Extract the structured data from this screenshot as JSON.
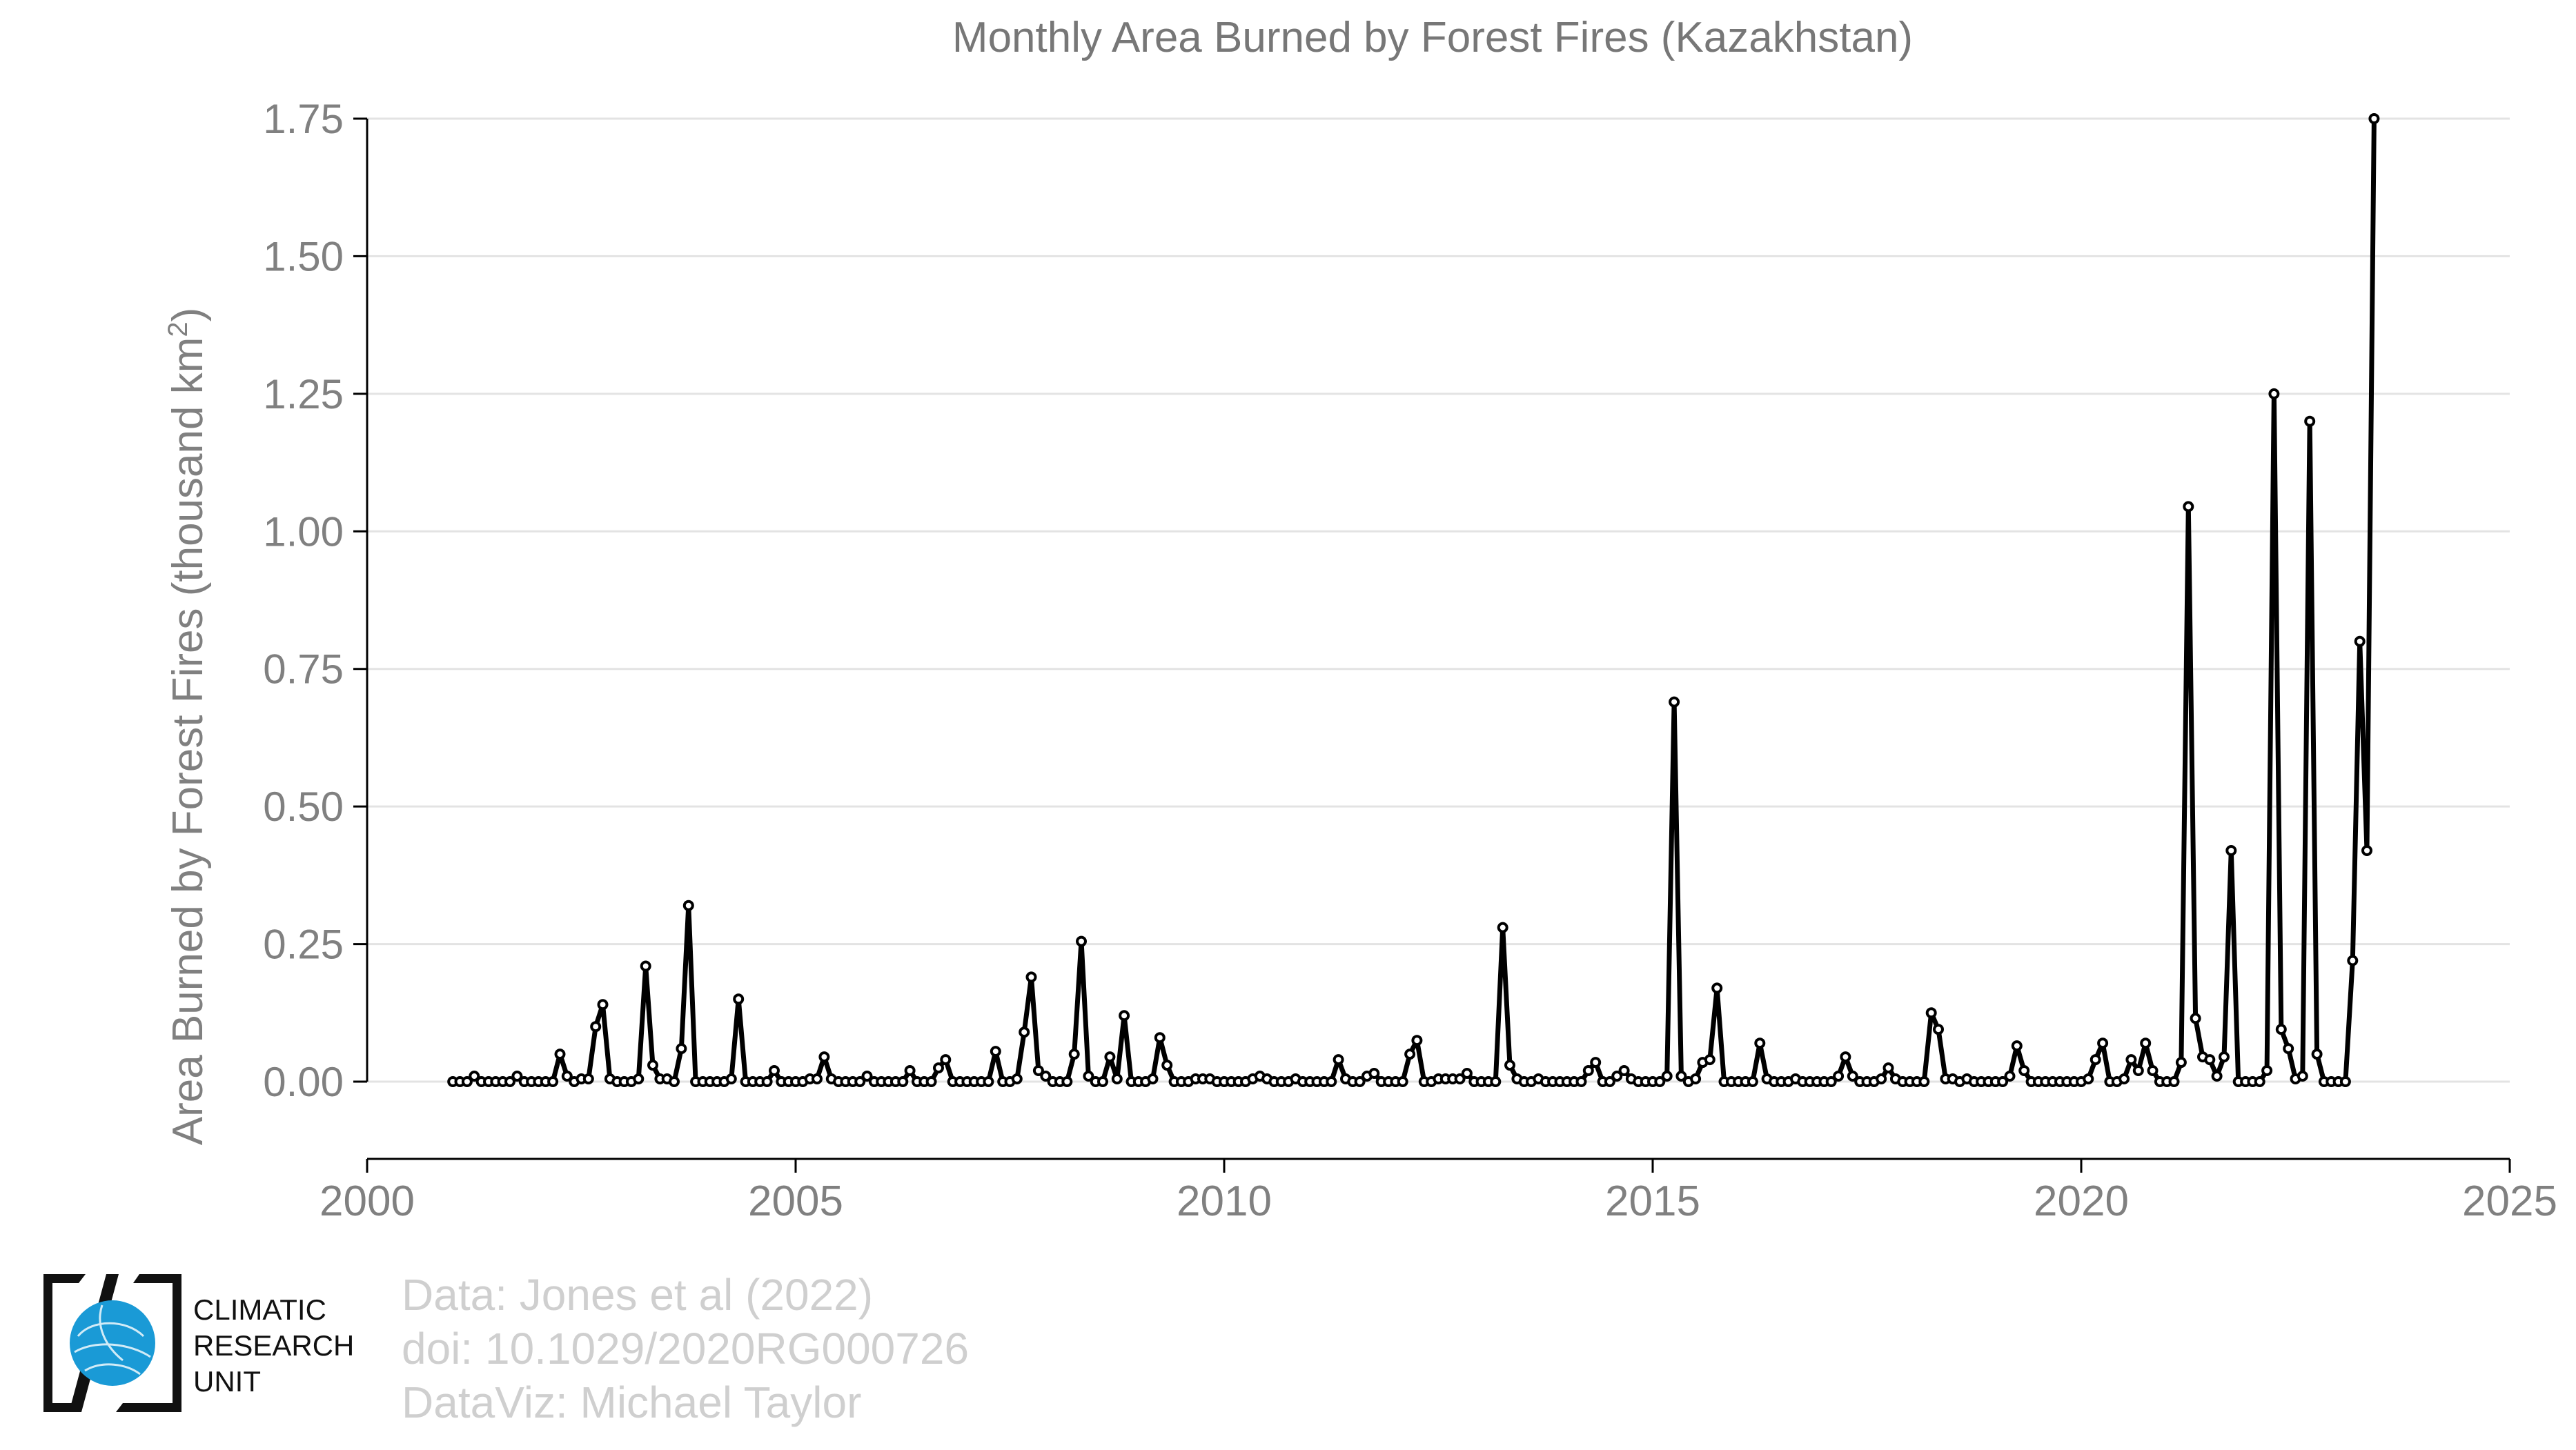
{
  "chart_data": {
    "type": "line",
    "title": "Monthly Area Burned by Forest Fires (Kazakhstan)",
    "ylabel": "Area Burned by Forest Fires (thousand km",
    "ylabel_superscript": "2",
    "ylabel_suffix": ")",
    "xlabel": "",
    "xlim": [
      2000,
      2025
    ],
    "ylim": [
      -0.14,
      1.75
    ],
    "x_ticks": [
      2000,
      2005,
      2010,
      2015,
      2020,
      2025
    ],
    "y_ticks": [
      0.0,
      0.25,
      0.5,
      0.75,
      1.0,
      1.25,
      1.5,
      1.75
    ],
    "y_tick_labels": [
      "0.00",
      "0.25",
      "0.50",
      "0.75",
      "1.00",
      "1.25",
      "1.50",
      "1.75"
    ],
    "grid": "horizontal",
    "series_color": "#000000",
    "start": "2001-01",
    "end": "2023-06",
    "values": [
      0,
      0,
      0,
      0.01,
      0,
      0,
      0,
      0,
      0,
      0.01,
      0,
      0,
      0,
      0,
      0,
      0.05,
      0.01,
      0,
      0.005,
      0.005,
      0.1,
      0.14,
      0.005,
      0,
      0,
      0,
      0.005,
      0.21,
      0.03,
      0.005,
      0.005,
      0,
      0.06,
      0.32,
      0,
      0,
      0,
      0,
      0,
      0.005,
      0.15,
      0,
      0,
      0,
      0,
      0.02,
      0,
      0,
      0,
      0,
      0.005,
      0.005,
      0.045,
      0.005,
      0,
      0,
      0,
      0,
      0.01,
      0,
      0,
      0,
      0,
      0,
      0.02,
      0,
      0,
      0,
      0.025,
      0.04,
      0,
      0,
      0,
      0,
      0,
      0,
      0.055,
      0,
      0,
      0.005,
      0.09,
      0.19,
      0.02,
      0.01,
      0,
      0,
      0,
      0.05,
      0.255,
      0.01,
      0,
      0,
      0.045,
      0.005,
      0.12,
      0,
      0,
      0,
      0.005,
      0.08,
      0.03,
      0,
      0,
      0,
      0.005,
      0.005,
      0.005,
      0,
      0,
      0,
      0,
      0,
      0.005,
      0.01,
      0.005,
      0,
      0,
      0,
      0.005,
      0,
      0,
      0,
      0,
      0,
      0.04,
      0.005,
      0,
      0,
      0.01,
      0.015,
      0,
      0,
      0,
      0,
      0.05,
      0.075,
      0,
      0,
      0.005,
      0.005,
      0.005,
      0.005,
      0.015,
      0,
      0,
      0,
      0,
      0.28,
      0.03,
      0.005,
      0,
      0,
      0.005,
      0,
      0,
      0,
      0,
      0,
      0,
      0.02,
      0.035,
      0,
      0,
      0.01,
      0.02,
      0.005,
      0,
      0,
      0,
      0,
      0.01,
      0.69,
      0.01,
      0,
      0.005,
      0.035,
      0.04,
      0.17,
      0,
      0,
      0,
      0,
      0,
      0.07,
      0.005,
      0,
      0,
      0,
      0.005,
      0,
      0,
      0,
      0,
      0,
      0.01,
      0.045,
      0.01,
      0,
      0,
      0,
      0.005,
      0.025,
      0.005,
      0,
      0,
      0,
      0,
      0.125,
      0.095,
      0.005,
      0.005,
      0,
      0.005,
      0,
      0,
      0,
      0,
      0,
      0.01,
      0.065,
      0.02,
      0,
      0,
      0,
      0,
      0,
      0,
      0,
      0,
      0.005,
      0.04,
      0.07,
      0,
      0,
      0.005,
      0.04,
      0.02,
      0.07,
      0.02,
      0,
      0,
      0,
      0.035,
      1.045,
      0.115,
      0.045,
      0.04,
      0.01,
      0.045,
      0.42,
      0,
      0,
      0,
      0,
      0.02,
      1.25,
      0.095,
      0.06,
      0.005,
      0.01,
      1.2,
      0.05,
      0,
      0,
      0,
      0,
      0.22,
      0.8,
      0.42,
      1.75
    ]
  },
  "credits": {
    "line1": "Data: Jones et al (2022)",
    "line2": "doi: 10.1029/2020RG000726",
    "line3": "DataViz: Michael Taylor"
  },
  "logo": {
    "line1": "CLIMATIC",
    "line2": "RESEARCH",
    "line3": "UNIT",
    "globe_color": "#1a9ad6"
  }
}
